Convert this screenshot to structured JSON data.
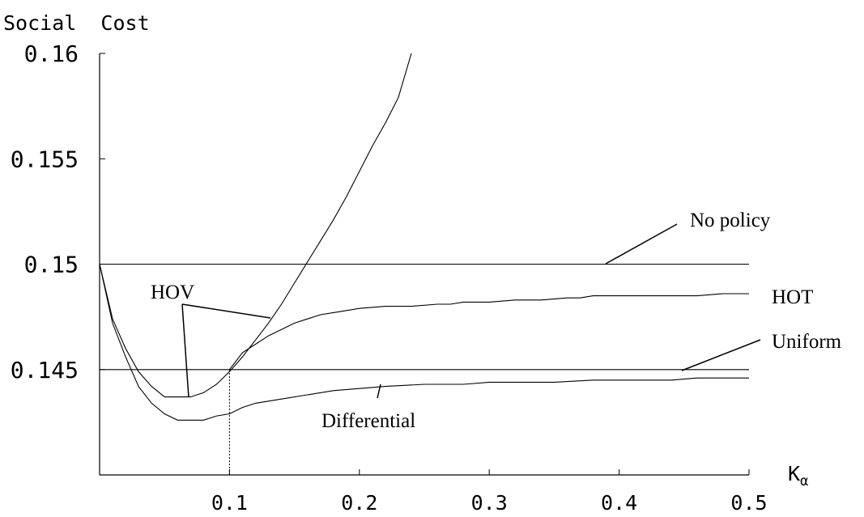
{
  "chart_data": {
    "type": "line",
    "ylabel": "Social  Cost",
    "xlabel": "K",
    "xlabel_sub": "α",
    "xlim": [
      0,
      0.5
    ],
    "ylim": [
      0.14,
      0.16
    ],
    "x_ticks": [
      0.1,
      0.2,
      0.3,
      0.4,
      0.5
    ],
    "x_tick_labels": [
      "0.1",
      "0.2",
      "0.3",
      "0.4",
      "0.5"
    ],
    "y_ticks": [
      0.145,
      0.15,
      0.155,
      0.16
    ],
    "y_tick_labels": [
      "0.145",
      "0.15",
      "0.155",
      "0.16"
    ],
    "grid": false,
    "series": [
      {
        "name": "No policy",
        "x": [
          0,
          0.5
        ],
        "y": [
          0.15,
          0.15
        ]
      },
      {
        "name": "Uniform",
        "x": [
          0,
          0.5
        ],
        "y": [
          0.145,
          0.145
        ]
      },
      {
        "name": "HOV",
        "x": [
          0,
          0.01,
          0.02,
          0.03,
          0.04,
          0.05,
          0.06,
          0.07,
          0.08,
          0.09,
          0.1,
          0.11,
          0.12,
          0.13,
          0.14,
          0.15,
          0.16,
          0.17,
          0.18,
          0.19,
          0.2,
          0.21,
          0.22,
          0.23,
          0.24
        ],
        "y": [
          0.15,
          0.1474,
          0.146,
          0.1449,
          0.1442,
          0.1437,
          0.1437,
          0.1437,
          0.1439,
          0.1443,
          0.1449,
          0.1456,
          0.1464,
          0.1472,
          0.1481,
          0.1491,
          0.1501,
          0.1511,
          0.1521,
          0.1532,
          0.1544,
          0.1556,
          0.1567,
          0.1579,
          0.16
        ]
      },
      {
        "name": "HOT",
        "x": [
          0.1,
          0.11,
          0.12,
          0.13,
          0.14,
          0.15,
          0.16,
          0.17,
          0.18,
          0.19,
          0.2,
          0.22,
          0.24,
          0.26,
          0.27,
          0.28,
          0.3,
          0.32,
          0.34,
          0.36,
          0.37,
          0.38,
          0.4,
          0.42,
          0.44,
          0.46,
          0.48,
          0.5
        ],
        "y": [
          0.145,
          0.1458,
          0.1462,
          0.1466,
          0.1469,
          0.1472,
          0.1474,
          0.1476,
          0.1477,
          0.1478,
          0.1479,
          0.148,
          0.148,
          0.1481,
          0.1481,
          0.1482,
          0.1482,
          0.1483,
          0.1483,
          0.1484,
          0.1484,
          0.1485,
          0.1485,
          0.1485,
          0.1485,
          0.1485,
          0.1486,
          0.1486
        ]
      },
      {
        "name": "Differential",
        "x": [
          0,
          0.01,
          0.02,
          0.03,
          0.04,
          0.05,
          0.06,
          0.07,
          0.08,
          0.09,
          0.1,
          0.11,
          0.12,
          0.14,
          0.16,
          0.18,
          0.2,
          0.22,
          0.25,
          0.28,
          0.3,
          0.32,
          0.35,
          0.38,
          0.4,
          0.42,
          0.44,
          0.46,
          0.48,
          0.5
        ],
        "y": [
          0.15,
          0.1472,
          0.1456,
          0.1442,
          0.1434,
          0.1429,
          0.1426,
          0.1426,
          0.1426,
          0.1428,
          0.1429,
          0.1432,
          0.1434,
          0.1436,
          0.1438,
          0.144,
          0.1441,
          0.1442,
          0.1443,
          0.1443,
          0.1444,
          0.1444,
          0.1444,
          0.1445,
          0.1445,
          0.1445,
          0.1445,
          0.1446,
          0.1446,
          0.1446
        ]
      }
    ],
    "annotations": [
      {
        "text": "No policy",
        "series": "No policy"
      },
      {
        "text": "HOT",
        "series": "HOT"
      },
      {
        "text": "Uniform",
        "series": "Uniform"
      },
      {
        "text": "HOV",
        "series": "HOV"
      },
      {
        "text": "Differential",
        "series": "Differential"
      }
    ],
    "reference_line": {
      "type": "vertical-dotted",
      "x": 0.1,
      "y_from": 0.14,
      "y_to": 0.145
    }
  }
}
